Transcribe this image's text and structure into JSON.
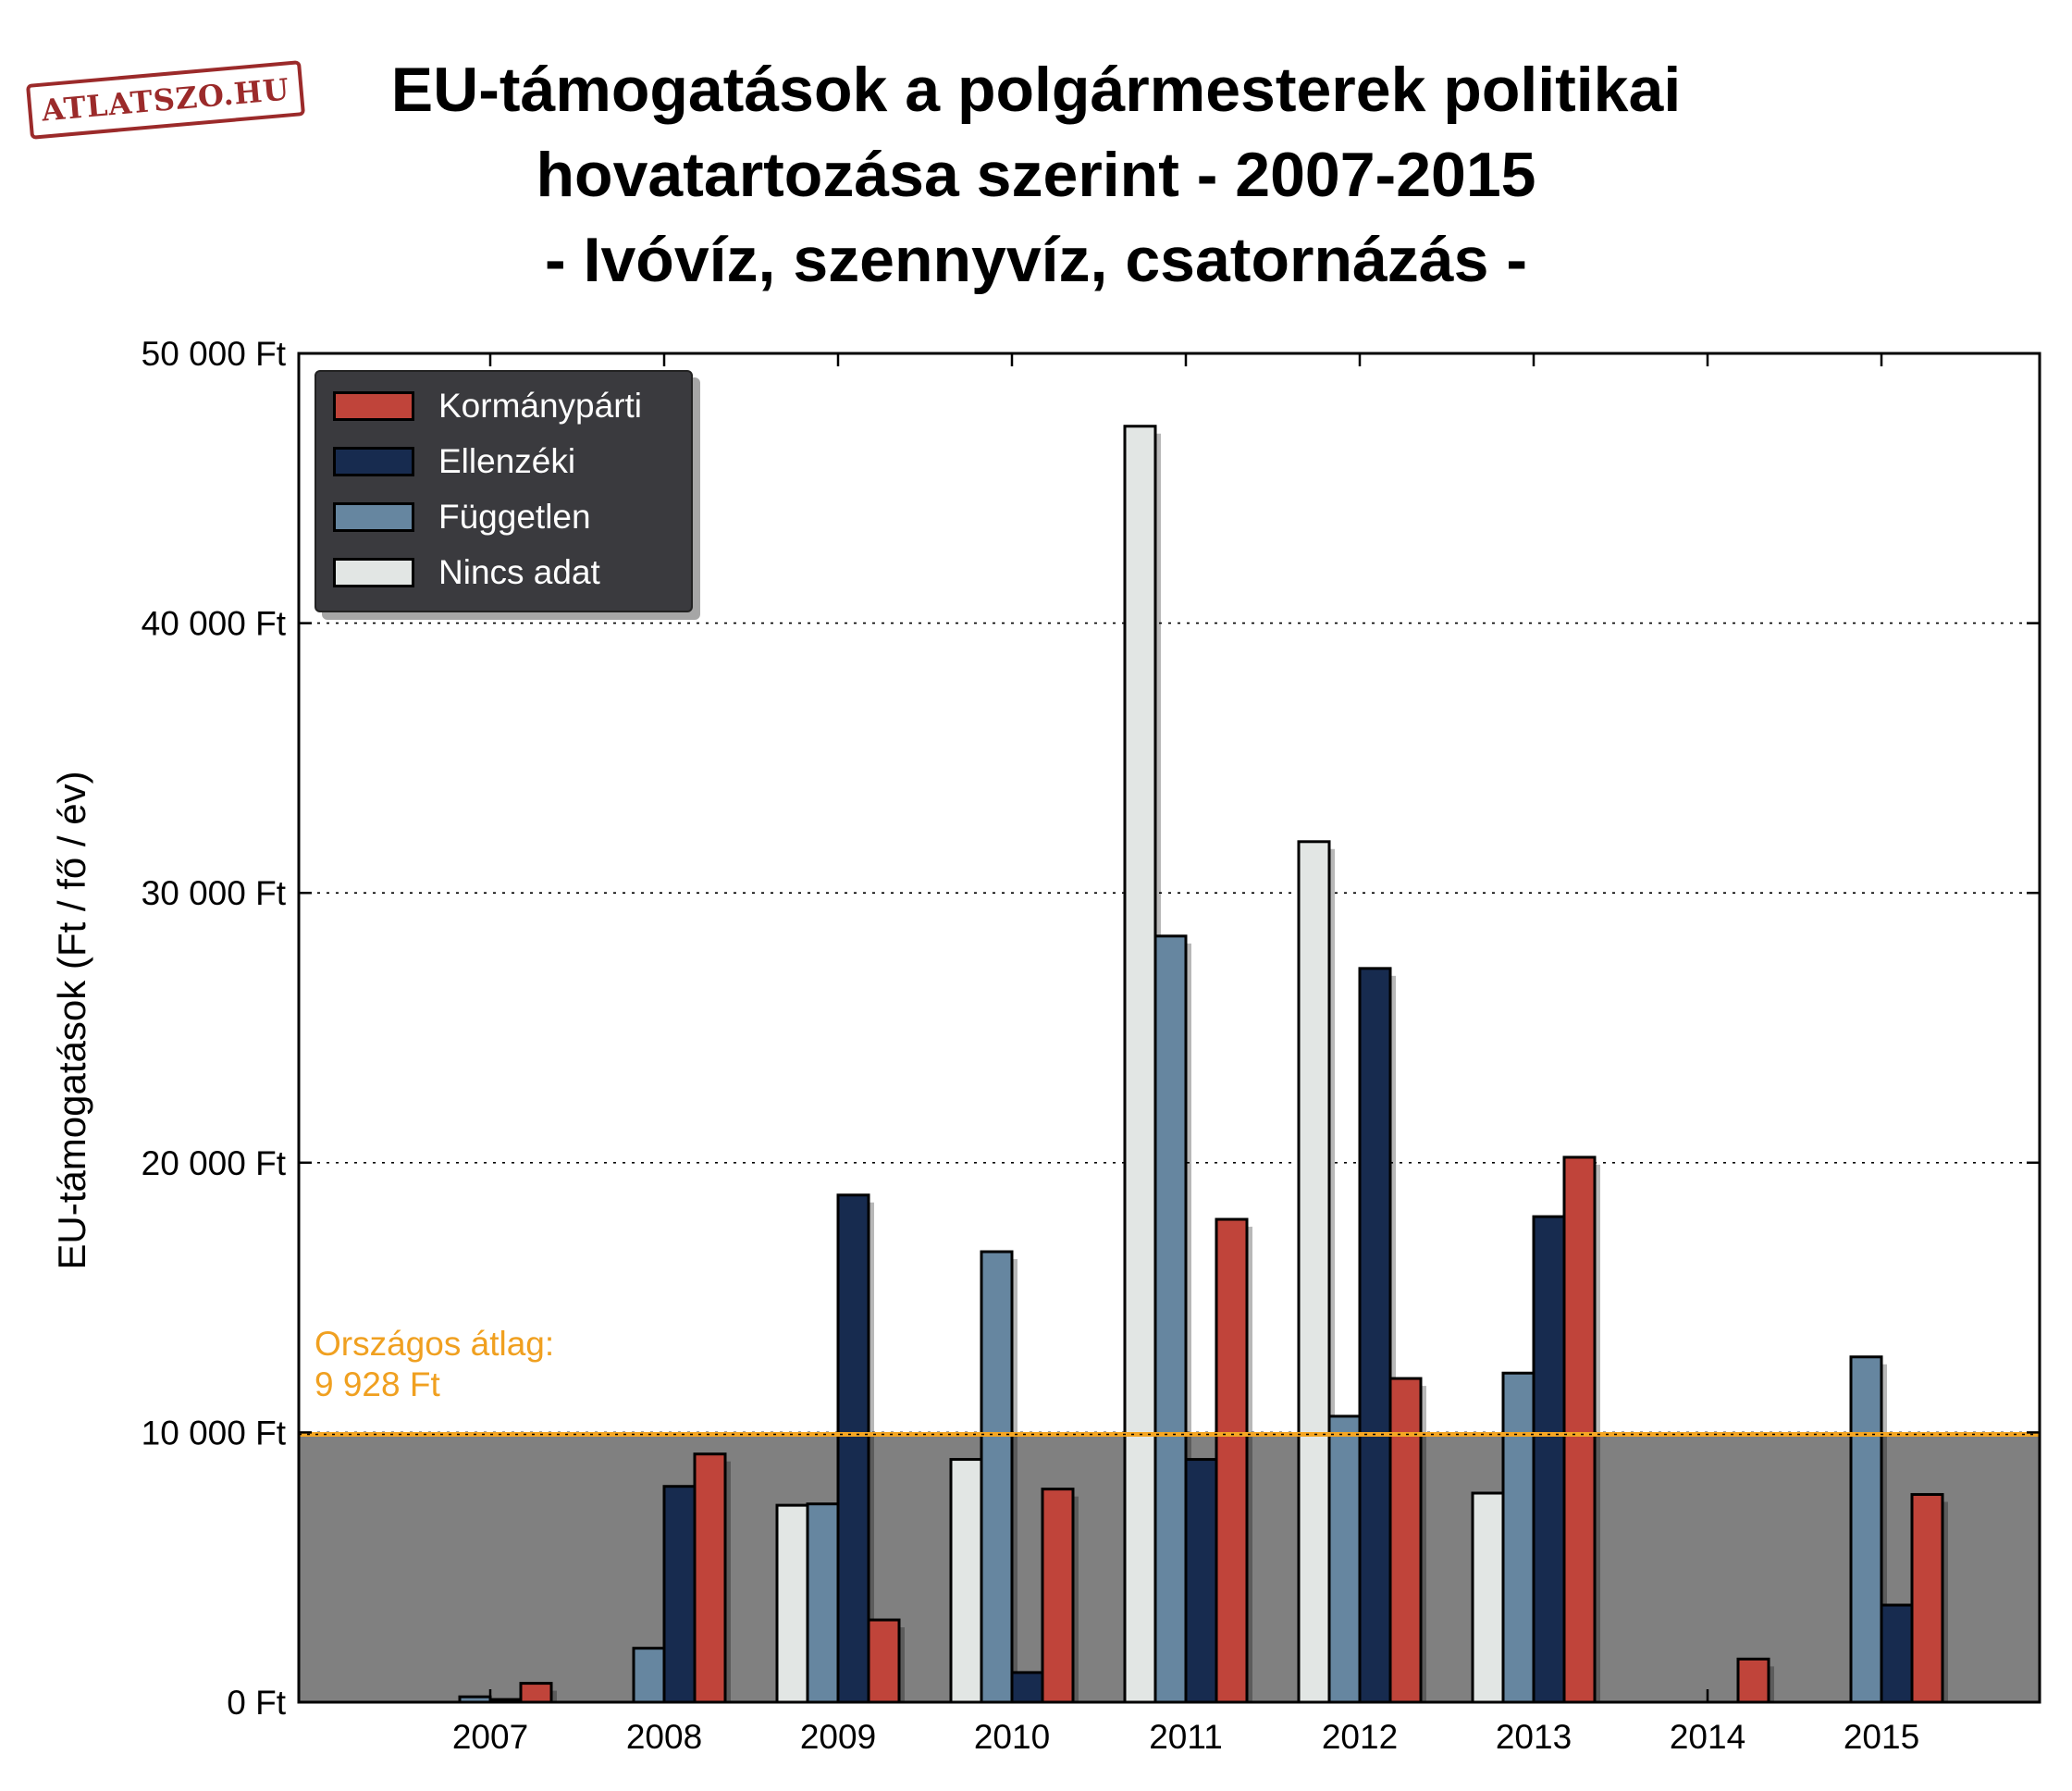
{
  "logo_text": "ATLATSZO.HU",
  "title_lines": [
    "EU-támogatások a polgármesterek politikai",
    "hovatartozása szerint - 2007-2015",
    "- Ivóvíz, szennyvíz, csatornázás -"
  ],
  "ylabel": "EU-támogatások (Ft / fő / év)",
  "average": {
    "label_line1": "Országos átlag:",
    "label_line2": "9 928 Ft",
    "value": 9928,
    "color": "#f5a623"
  },
  "colors": {
    "background_band": "#808080",
    "grid": "#000000",
    "frame": "#000000"
  },
  "chart_data": {
    "type": "bar",
    "title": "EU-támogatások a polgármesterek politikai hovatartozása szerint - 2007-2015 - Ivóvíz, szennyvíz, csatornázás -",
    "ylabel": "EU-támogatások (Ft / fő / év)",
    "xlabel": "",
    "ylim": [
      0,
      50000
    ],
    "yticks": [
      0,
      10000,
      20000,
      30000,
      40000,
      50000
    ],
    "ytick_labels": [
      "0 Ft",
      "10 000 Ft",
      "20 000 Ft",
      "30 000 Ft",
      "40 000 Ft",
      "50 000 Ft"
    ],
    "categories": [
      "2007",
      "2008",
      "2009",
      "2010",
      "2011",
      "2012",
      "2013",
      "2014",
      "2015"
    ],
    "grid": "horizontal dotted",
    "legend_position": "top-left",
    "series": [
      {
        "name": "Nincs adat",
        "color": "#e2e6e4",
        "values": [
          0,
          0,
          7300,
          9000,
          47300,
          31900,
          7750,
          0,
          0
        ]
      },
      {
        "name": "Független",
        "color": "#6686a0",
        "values": [
          200,
          2000,
          7350,
          16700,
          28400,
          10600,
          12200,
          0,
          12800
        ]
      },
      {
        "name": "Ellenzéki",
        "color": "#172b4f",
        "values": [
          100,
          8000,
          18800,
          1100,
          9000,
          27200,
          18000,
          0,
          3600
        ]
      },
      {
        "name": "Kormánypárti",
        "color": "#c0443a",
        "values": [
          700,
          9200,
          3050,
          7900,
          17900,
          12000,
          20200,
          1600,
          7700
        ]
      }
    ],
    "legend_order": [
      "Kormánypárti",
      "Ellenzéki",
      "Független",
      "Nincs adat"
    ]
  }
}
